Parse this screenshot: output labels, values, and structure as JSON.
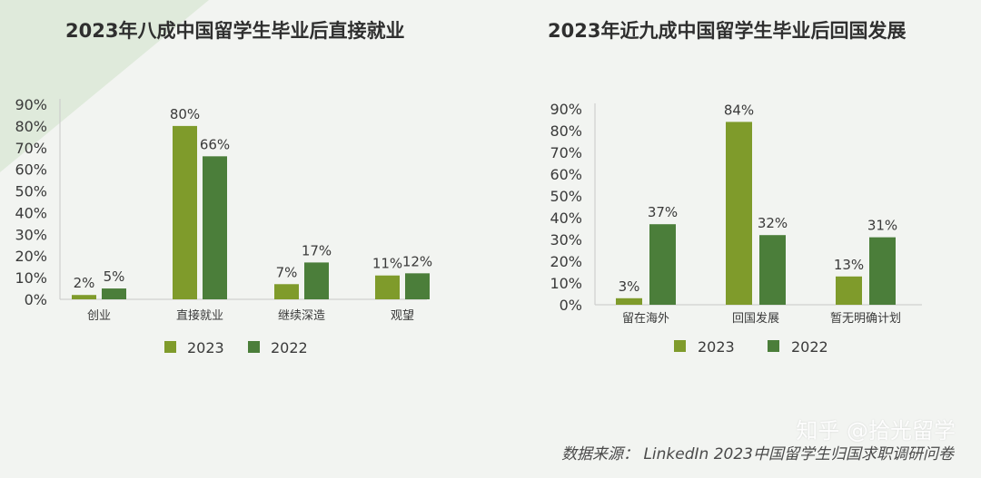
{
  "colors": {
    "c2023": "#7f9b2b",
    "c2022": "#4b7e3a",
    "axis": "#c8c8c8",
    "text": "#3a3a3a",
    "decor": "#dbe9d7"
  },
  "chart_data": [
    {
      "type": "bar",
      "title": "2023年八成中国留学生毕业后直接就业",
      "categories": [
        "创业",
        "直接就业",
        "继续深造",
        "观望"
      ],
      "series": [
        {
          "name": "2023",
          "values": [
            2,
            80,
            7,
            11
          ]
        },
        {
          "name": "2022",
          "values": [
            5,
            66,
            17,
            12
          ]
        }
      ],
      "ylim": [
        0,
        90
      ],
      "yticks": [
        "0%",
        "10%",
        "20%",
        "30%",
        "40%",
        "50%",
        "60%",
        "70%",
        "80%",
        "90%"
      ],
      "value_suffix": "%",
      "legend": "bottom",
      "grid": false
    },
    {
      "type": "bar",
      "title": "2023年近九成中国留学生毕业后回国发展",
      "categories": [
        "留在海外",
        "回国发展",
        "暂无明确计划"
      ],
      "series": [
        {
          "name": "2023",
          "values": [
            3,
            84,
            13
          ]
        },
        {
          "name": "2022",
          "values": [
            37,
            32,
            31
          ]
        }
      ],
      "ylim": [
        0,
        90
      ],
      "yticks": [
        "0%",
        "10%",
        "20%",
        "30%",
        "40%",
        "50%",
        "60%",
        "70%",
        "80%",
        "90%"
      ],
      "value_suffix": "%",
      "legend": "bottom",
      "grid": false
    }
  ],
  "footer": {
    "source": "数据来源： LinkedIn 2023中国留学生归国求职调研问卷"
  },
  "watermark": {
    "text": "知乎 @拾光留学"
  }
}
